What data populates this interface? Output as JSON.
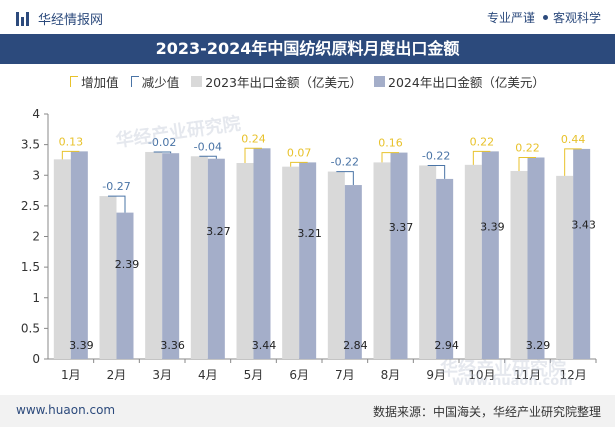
{
  "header": {
    "brand": "华经情报网",
    "tagline_a": "专业严谨",
    "tagline_b": "客观科学"
  },
  "title": "2023-2024年中国纺织原料月度出口金额",
  "legend": {
    "inc": "增加值",
    "dec": "减少值",
    "a": "2023年出口金额（亿美元）",
    "b": "2024年出口金额（亿美元）"
  },
  "footer": {
    "left": "www.huaon.com",
    "right": "数据来源：中国海关，华经产业研究院整理"
  },
  "watermarks": [
    "华经产业研究院",
    "华经产业研究院",
    "www.huaon.com"
  ],
  "colors": {
    "header_bg": "#2c4a7c",
    "bar_2023": "#d9d9d9",
    "bar_2024": "#a4aec9",
    "increase": "#e8c22b",
    "decrease": "#4a74a6"
  },
  "chart_data": {
    "type": "bar",
    "categories": [
      "1月",
      "2月",
      "3月",
      "4月",
      "5月",
      "6月",
      "7月",
      "8月",
      "9月",
      "10月",
      "11月",
      "12月"
    ],
    "series": [
      {
        "name": "2023年出口金额（亿美元）",
        "values": [
          3.26,
          2.66,
          3.38,
          3.31,
          3.2,
          3.14,
          3.06,
          3.21,
          3.16,
          3.17,
          3.07,
          2.99
        ]
      },
      {
        "name": "2024年出口金额（亿美元）",
        "values": [
          3.39,
          2.39,
          3.36,
          3.27,
          3.44,
          3.21,
          2.84,
          3.37,
          2.94,
          3.39,
          3.29,
          3.43
        ]
      }
    ],
    "change": [
      0.13,
      -0.27,
      -0.02,
      -0.04,
      0.24,
      0.07,
      -0.22,
      0.16,
      -0.22,
      0.22,
      0.22,
      0.44
    ],
    "change_labels": [
      "0.13",
      "-0.27",
      "-0.02",
      "-0.04",
      "0.24",
      "0.07",
      "-0.22",
      "0.16",
      "-0.22",
      "0.22",
      "0.22",
      "0.44"
    ],
    "value_labels": [
      "3.39",
      "2.39",
      "3.36",
      "3.27",
      "3.44",
      "3.21",
      "2.84",
      "3.37",
      "2.94",
      "3.39",
      "3.29",
      "3.43"
    ],
    "y_ticks": [
      "0",
      "0.5",
      "1",
      "1.5",
      "2",
      "2.5",
      "3",
      "3.5",
      "4"
    ],
    "ylim": [
      0,
      4
    ],
    "grid": false,
    "legend_position": "top"
  }
}
